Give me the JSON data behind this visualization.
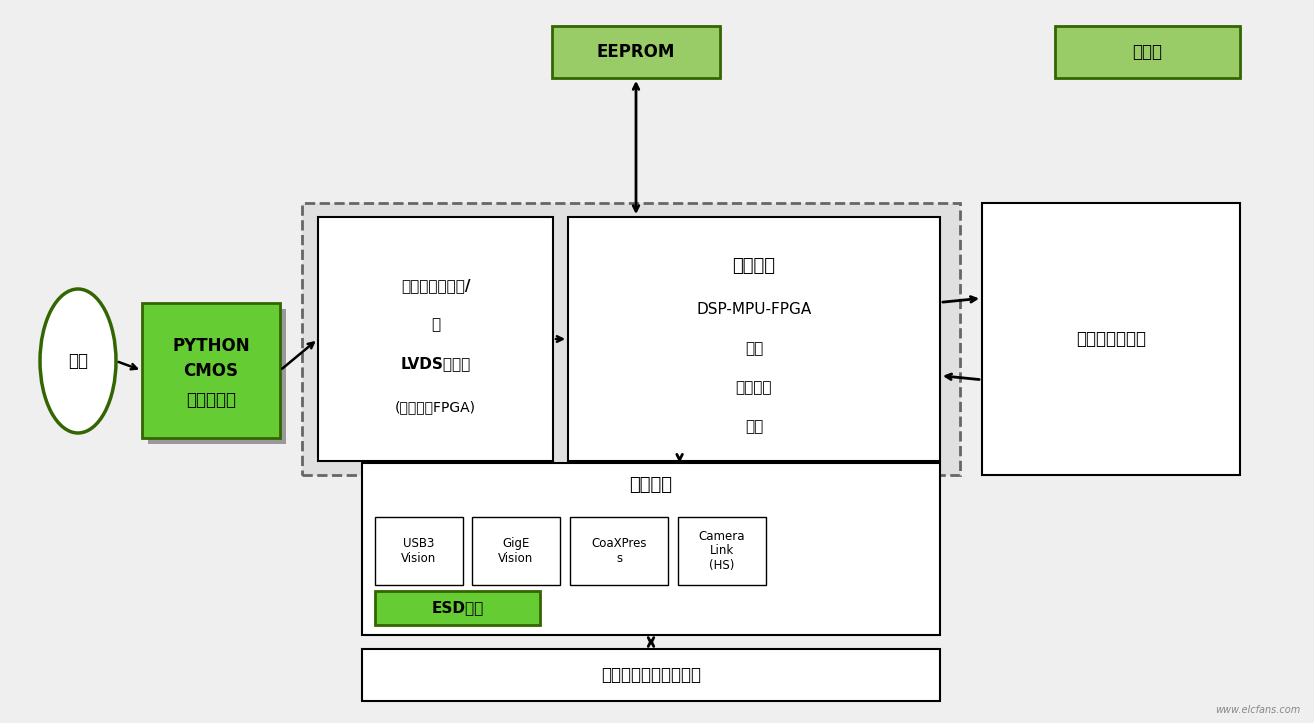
{
  "bg_color": "#efefef",
  "green_fill": "#66cc33",
  "green_dark": "#336600",
  "light_green_fill": "#99cc66",
  "esd_green": "#66cc33",
  "white_fill": "#ffffff",
  "light_gray_fill": "#e0e0e0",
  "black": "#000000",
  "lens_label": "镜头",
  "sensor_line1": "PYTHON",
  "sensor_line2": "CMOS",
  "sensor_line3": "图像传感器",
  "bridge_line1": "图像传感器接口/",
  "bridge_line2": "桥",
  "bridge_line3": "LVDS或并行",
  "bridge_line4": "(通常采用FPGA)",
  "capture_title": "捕获引擎",
  "capture_line1": "DSP-MPU-FPGA",
  "capture_line2": "分析",
  "capture_line3": "图像处理",
  "capture_line4": "编码",
  "eeprom_label": "EEPROM",
  "power_label": "板电源",
  "memory_label": "高速存储器接口",
  "video_title": "视频接口",
  "esd_label": "ESD保护",
  "host_label": "主机计算机捕获和控制",
  "usb_label": "USB3\nVision",
  "gige_label": "GigE\nVision",
  "coax_label": "CoaXPres\ns",
  "camera_label": "Camera\nLink\n(HS)",
  "watermark": "www.elcfans.com"
}
